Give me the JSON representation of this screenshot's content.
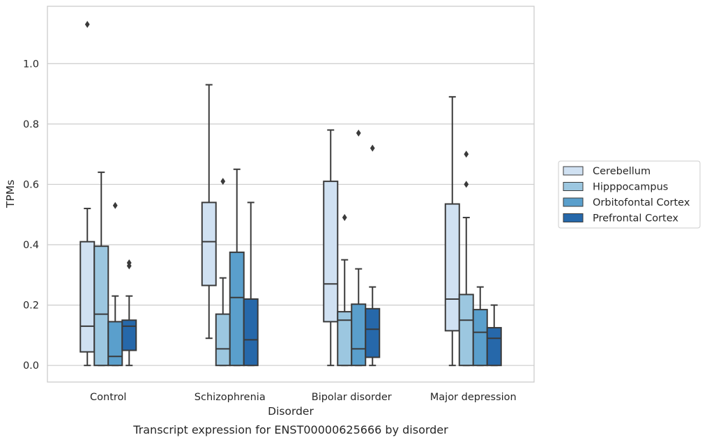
{
  "chart_data": {
    "type": "box",
    "caption": "Transcript expression for ENST00000625666 by disorder",
    "xlabel": "Disorder",
    "ylabel": "TPMs",
    "ylim": [
      -0.055,
      1.19
    ],
    "yticks": [
      0.0,
      0.2,
      0.4,
      0.6,
      0.8,
      1.0
    ],
    "ytick_labels": [
      "0.0",
      "0.2",
      "0.4",
      "0.6",
      "0.8",
      "1.0"
    ],
    "grid": "horizontal",
    "legend_position": "right",
    "categories": [
      "Control",
      "Schizophrenia",
      "Bipolar disorder",
      "Major depression"
    ],
    "series": [
      {
        "name": "Cerebellum",
        "color": "#d0e1f2",
        "boxes": [
          {
            "whislo": 0.0,
            "q1": 0.045,
            "med": 0.13,
            "q3": 0.41,
            "whishi": 0.52,
            "fliers": [
              1.13
            ]
          },
          {
            "whislo": 0.09,
            "q1": 0.265,
            "med": 0.41,
            "q3": 0.54,
            "whishi": 0.93,
            "fliers": []
          },
          {
            "whislo": 0.0,
            "q1": 0.145,
            "med": 0.27,
            "q3": 0.61,
            "whishi": 0.78,
            "fliers": []
          },
          {
            "whislo": 0.0,
            "q1": 0.115,
            "med": 0.22,
            "q3": 0.535,
            "whishi": 0.89,
            "fliers": []
          }
        ]
      },
      {
        "name": "Hipppocampus",
        "color": "#9cc7e0",
        "boxes": [
          {
            "whislo": 0.0,
            "q1": 0.0,
            "med": 0.17,
            "q3": 0.395,
            "whishi": 0.64,
            "fliers": []
          },
          {
            "whislo": 0.0,
            "q1": 0.0,
            "med": 0.055,
            "q3": 0.17,
            "whishi": 0.29,
            "fliers": [
              0.61
            ]
          },
          {
            "whislo": 0.0,
            "q1": 0.0,
            "med": 0.15,
            "q3": 0.178,
            "whishi": 0.35,
            "fliers": [
              0.49
            ]
          },
          {
            "whislo": 0.0,
            "q1": 0.0,
            "med": 0.15,
            "q3": 0.235,
            "whishi": 0.49,
            "fliers": [
              0.6,
              0.7
            ]
          }
        ]
      },
      {
        "name": "Orbitofontal Cortex",
        "color": "#5a9fcc",
        "boxes": [
          {
            "whislo": 0.0,
            "q1": 0.0,
            "med": 0.03,
            "q3": 0.145,
            "whishi": 0.23,
            "fliers": [
              0.53
            ]
          },
          {
            "whislo": 0.0,
            "q1": 0.0,
            "med": 0.225,
            "q3": 0.375,
            "whishi": 0.65,
            "fliers": []
          },
          {
            "whislo": 0.0,
            "q1": 0.0,
            "med": 0.055,
            "q3": 0.203,
            "whishi": 0.32,
            "fliers": [
              0.77
            ]
          },
          {
            "whislo": 0.0,
            "q1": 0.0,
            "med": 0.11,
            "q3": 0.185,
            "whishi": 0.26,
            "fliers": []
          }
        ]
      },
      {
        "name": "Prefrontal Cortex",
        "color": "#2668aa",
        "boxes": [
          {
            "whislo": 0.0,
            "q1": 0.05,
            "med": 0.13,
            "q3": 0.15,
            "whishi": 0.23,
            "fliers": [
              0.33,
              0.34
            ]
          },
          {
            "whislo": 0.0,
            "q1": 0.0,
            "med": 0.085,
            "q3": 0.22,
            "whishi": 0.54,
            "fliers": []
          },
          {
            "whislo": 0.0,
            "q1": 0.027,
            "med": 0.12,
            "q3": 0.188,
            "whishi": 0.26,
            "fliers": [
              0.72
            ]
          },
          {
            "whislo": 0.0,
            "q1": 0.0,
            "med": 0.09,
            "q3": 0.125,
            "whishi": 0.2,
            "fliers": []
          }
        ]
      }
    ]
  }
}
